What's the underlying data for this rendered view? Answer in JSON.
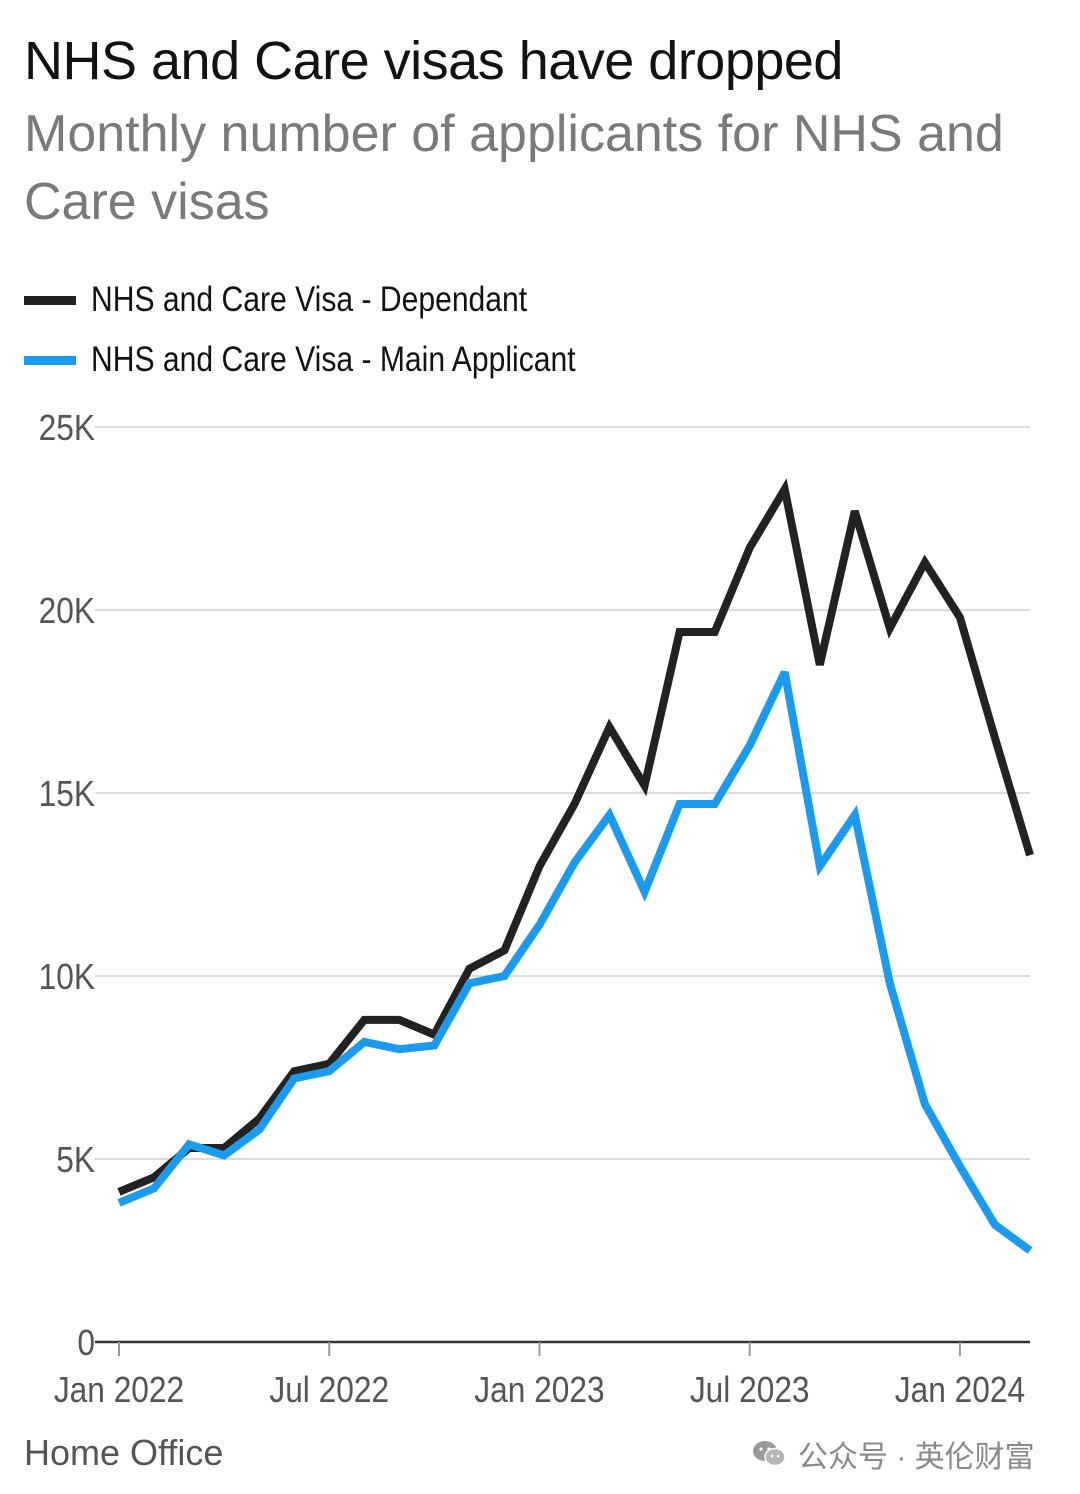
{
  "title": "NHS and Care visas have dropped",
  "subtitle": "Monthly number of applicants for NHS and Care visas",
  "source": "Home Office",
  "watermark": "公众号 · 英伦财富",
  "legend": [
    {
      "label": "NHS and Care Visa - Dependant",
      "color": "#222222"
    },
    {
      "label": "NHS and Care Visa - Main Applicant",
      "color": "#1a9bef"
    }
  ],
  "chart_data": {
    "type": "line",
    "x": [
      "2022-01",
      "2022-02",
      "2022-03",
      "2022-04",
      "2022-05",
      "2022-06",
      "2022-07",
      "2022-08",
      "2022-09",
      "2022-10",
      "2022-11",
      "2022-12",
      "2023-01",
      "2023-02",
      "2023-03",
      "2023-04",
      "2023-05",
      "2023-06",
      "2023-07",
      "2023-08",
      "2023-09",
      "2023-10",
      "2023-11",
      "2023-12",
      "2024-01",
      "2024-02",
      "2024-03"
    ],
    "series": [
      {
        "name": "NHS and Care Visa - Dependant",
        "color": "#222222",
        "values": [
          4100,
          4500,
          5300,
          5300,
          6100,
          7400,
          7600,
          8800,
          8800,
          8400,
          10200,
          10700,
          13000,
          14700,
          16800,
          15200,
          19400,
          19400,
          21700,
          23300,
          18500,
          22700,
          19500,
          21300,
          19800,
          16500,
          13300
        ]
      },
      {
        "name": "NHS and Care Visa - Main Applicant",
        "color": "#1a9bef",
        "values": [
          3800,
          4200,
          5400,
          5100,
          5800,
          7200,
          7400,
          8200,
          8000,
          8100,
          9800,
          10000,
          11400,
          13100,
          14400,
          12300,
          14700,
          14700,
          16300,
          18300,
          13000,
          14400,
          9800,
          6500,
          4800,
          3200,
          2500
        ]
      }
    ],
    "ylim": [
      0,
      25000
    ],
    "yticks": [
      0,
      5000,
      10000,
      15000,
      20000,
      25000
    ],
    "ytick_labels": [
      "0",
      "5K",
      "10K",
      "15K",
      "20K",
      "25K"
    ],
    "xticks": [
      {
        "at": "2022-01",
        "label": "Jan 2022"
      },
      {
        "at": "2022-07",
        "label": "Jul 2022"
      },
      {
        "at": "2023-01",
        "label": "Jan 2023"
      },
      {
        "at": "2023-07",
        "label": "Jul 2023"
      },
      {
        "at": "2024-01",
        "label": "Jan 2024"
      }
    ],
    "grid": true
  }
}
